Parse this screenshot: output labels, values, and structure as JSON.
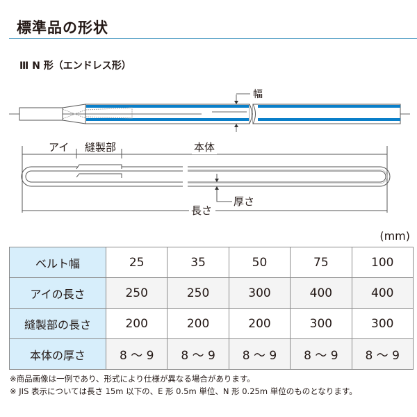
{
  "title": "標準品の形状",
  "subtitle": "Ⅲ N 形（エンドレス形）",
  "diagram": {
    "width_label": "幅",
    "eye_label": "アイ",
    "sewn_label": "縫製部",
    "body_label": "本体",
    "thickness_label": "厚さ",
    "length_label": "長さ",
    "accent_color": "#0a7fc9"
  },
  "unit": "(mm)",
  "table": {
    "rows": [
      {
        "label": "ベルト幅",
        "values": [
          "25",
          "35",
          "50",
          "75",
          "100"
        ]
      },
      {
        "label": "アイの長さ",
        "values": [
          "250",
          "250",
          "300",
          "400",
          "400"
        ]
      },
      {
        "label": "縫製部の長さ",
        "values": [
          "200",
          "200",
          "200",
          "300",
          "300"
        ]
      },
      {
        "label": "本体の厚さ",
        "values": [
          "8 ～ 9",
          "8 ～ 9",
          "8 ～ 9",
          "8 ～ 9",
          "8 ～ 9"
        ]
      }
    ]
  },
  "notes": [
    "※商品画像は一例であり、形式により仕様が異なる場合があります。",
    "※ JIS 表示については長さ 15m 以下の、E 形 0.5m 単位、N 形 0.25m 単位のものとなります。"
  ]
}
